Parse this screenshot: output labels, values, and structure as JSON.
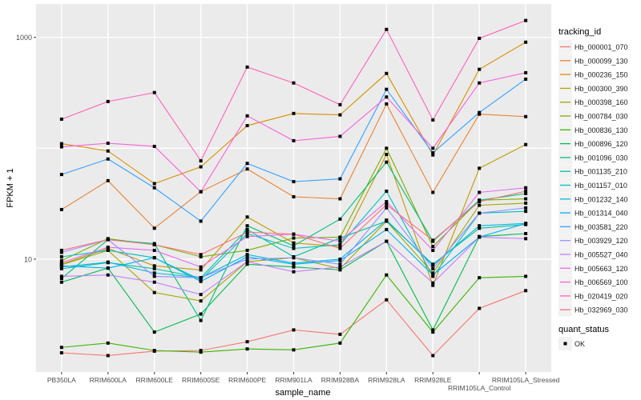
{
  "chart_data": {
    "type": "line",
    "title": "",
    "xlabel": "sample_name",
    "ylabel": "FPKM + 1",
    "yscale": "log10",
    "ylim": [
      0.96,
      2000
    ],
    "yticks": [
      10,
      1000
    ],
    "ytick_labels": [
      "10",
      "1000"
    ],
    "y_minor_gridlines": [
      100
    ],
    "grid": true,
    "legend_position": "right",
    "categories": [
      "PB350LA",
      "RRIM600LA",
      "RRIM600LE",
      "RRIM600SE",
      "RRIM600PE",
      "RRIM901LA",
      "RRIM928BA",
      "RRIM928LA",
      "RRIM928LE",
      "RRIM105LA_Control",
      "RRIM105LA_Stressed"
    ],
    "color_legend_title": "tracking_id",
    "shape_legend_title": "quant_status",
    "shape_legend_items": [
      "OK"
    ],
    "series": [
      {
        "name": "Hb_000001_070",
        "color": "#F8766D",
        "values": [
          1.43,
          1.35,
          1.48,
          1.5,
          1.8,
          2.3,
          2.1,
          4.3,
          1.35,
          3.6,
          5.2
        ]
      },
      {
        "name": "Hb_000099_130",
        "color": "#EA8331",
        "values": [
          28,
          51,
          19,
          40.6,
          65,
          36.5,
          35,
          251,
          40,
          203,
          193
        ]
      },
      {
        "name": "Hb_000236_150",
        "color": "#D89000",
        "values": [
          110,
          94.5,
          48,
          68,
          160,
          206,
          200,
          473,
          87,
          515,
          905
        ]
      },
      {
        "name": "Hb_000300_390",
        "color": "#C09B00",
        "values": [
          9,
          12.5,
          8.7,
          8,
          24,
          14,
          13,
          88,
          5.8,
          66,
          108
        ]
      },
      {
        "name": "Hb_000398_160",
        "color": "#A3A500",
        "values": [
          8.9,
          12,
          5,
          4.2,
          9.5,
          10.3,
          8.2,
          22,
          7.5,
          30.6,
          32
        ]
      },
      {
        "name": "Hb_000784_030",
        "color": "#7CAE00",
        "values": [
          9.7,
          15.3,
          13.5,
          10.5,
          12,
          15.5,
          15.8,
          100,
          13,
          34,
          35
        ]
      },
      {
        "name": "Hb_000836_130",
        "color": "#39B600",
        "values": [
          1.6,
          1.75,
          1.5,
          1.45,
          1.55,
          1.52,
          1.75,
          7.2,
          2.2,
          6.8,
          7
        ]
      },
      {
        "name": "Hb_000896_120",
        "color": "#00BB4E",
        "values": [
          6.2,
          8.3,
          2.2,
          3.2,
          9,
          8.5,
          8,
          14.5,
          2.3,
          16,
          17
        ]
      },
      {
        "name": "Hb_001096_030",
        "color": "#00BF7D",
        "values": [
          6.7,
          15,
          13.8,
          2.8,
          20,
          13.2,
          23,
          75,
          14.5,
          34,
          39
        ]
      },
      {
        "name": "Hb_001135_210",
        "color": "#00C1A3",
        "values": [
          8.2,
          9.3,
          8.2,
          6.8,
          18.5,
          10.5,
          15.5,
          22,
          9,
          19,
          20.5
        ]
      },
      {
        "name": "Hb_001157_010",
        "color": "#00BFC4",
        "values": [
          10.5,
          12,
          10.3,
          6.5,
          17,
          12.5,
          13.5,
          41,
          7,
          26,
          27
        ]
      },
      {
        "name": "Hb_001232_140",
        "color": "#00BAE0",
        "values": [
          8.5,
          9.4,
          7.5,
          6.8,
          11,
          9.2,
          10,
          22.5,
          8.8,
          20,
          21
        ]
      },
      {
        "name": "Hb_001314_040",
        "color": "#00B0F6",
        "values": [
          8.7,
          8.3,
          10.3,
          6.3,
          10.5,
          9,
          9.7,
          18.5,
          7.2,
          15.8,
          21
        ]
      },
      {
        "name": "Hb_003581_220",
        "color": "#35A2FF",
        "values": [
          58,
          80,
          44,
          22,
          73,
          50,
          53,
          340,
          91,
          210,
          420
        ]
      },
      {
        "name": "Hb_003929_120",
        "color": "#9590FF",
        "values": [
          11.5,
          15,
          7,
          6.8,
          10,
          10.3,
          9,
          29,
          8.2,
          26,
          29
        ]
      },
      {
        "name": "Hb_005527_040",
        "color": "#C77CFF",
        "values": [
          7,
          7.2,
          6.2,
          4.8,
          9.5,
          7.7,
          8.5,
          14.5,
          6.1,
          15.8,
          15.3
        ]
      },
      {
        "name": "Hb_005663_120",
        "color": "#E76BF3",
        "values": [
          9.3,
          12.8,
          12,
          8.5,
          16,
          16.8,
          14.5,
          33,
          12,
          40,
          44
        ]
      },
      {
        "name": "Hb_006569_100",
        "color": "#FA62DB",
        "values": [
          103,
          111,
          104,
          40.5,
          196,
          117,
          128,
          290,
          100,
          388,
          480
        ]
      },
      {
        "name": "Hb_020419_020",
        "color": "#FF62BC",
        "values": [
          183,
          264,
          318,
          77,
          540,
          388,
          247,
          1180,
          180,
          980,
          1420
        ]
      },
      {
        "name": "Hb_032969_030",
        "color": "#FC717F",
        "values": [
          12,
          15,
          13.5,
          11,
          17.5,
          16.8,
          12.5,
          31,
          14.8,
          33,
          41
        ]
      }
    ]
  }
}
